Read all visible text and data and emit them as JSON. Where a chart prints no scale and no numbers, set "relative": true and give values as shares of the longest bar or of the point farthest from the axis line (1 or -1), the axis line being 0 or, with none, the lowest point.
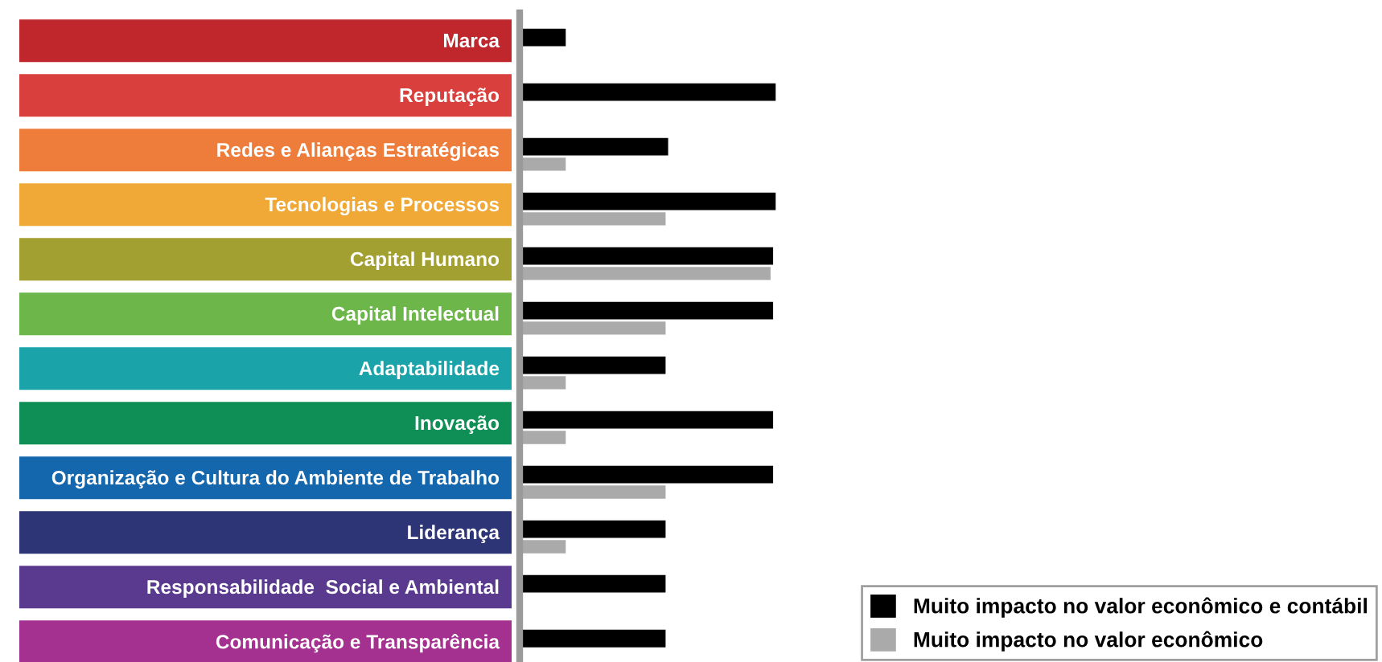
{
  "chart_data": {
    "type": "bar",
    "orientation": "horizontal",
    "relative": true,
    "categories": [
      "Marca",
      "Reputação",
      "Redes e Alianças Estratégicas",
      "Tecnologias e Processos",
      "Capital Humano",
      "Capital Intelectual",
      "Adaptabilidade",
      "Inovação",
      "Organização e Cultura do Ambiente de Trabalho",
      "Liderança",
      "Responsabilidade  Social e Ambiental",
      "Comunicação e Transparência"
    ],
    "series": [
      {
        "name": "Muito impacto no valor econômico e contábil",
        "color": "#000000",
        "values": [
          0.18,
          1,
          0.58,
          1,
          0.99,
          0.99,
          0.57,
          0.99,
          0.99,
          0.57,
          0.57,
          0.57
        ]
      },
      {
        "name": "Muito impacto no valor econômico",
        "color": "#aaaaaa",
        "values": [
          null,
          null,
          0.18,
          0.57,
          0.98,
          0.57,
          0.18,
          0.18,
          0.57,
          0.18,
          null,
          null
        ]
      }
    ],
    "legend": "bottom right",
    "grid": false
  }
}
